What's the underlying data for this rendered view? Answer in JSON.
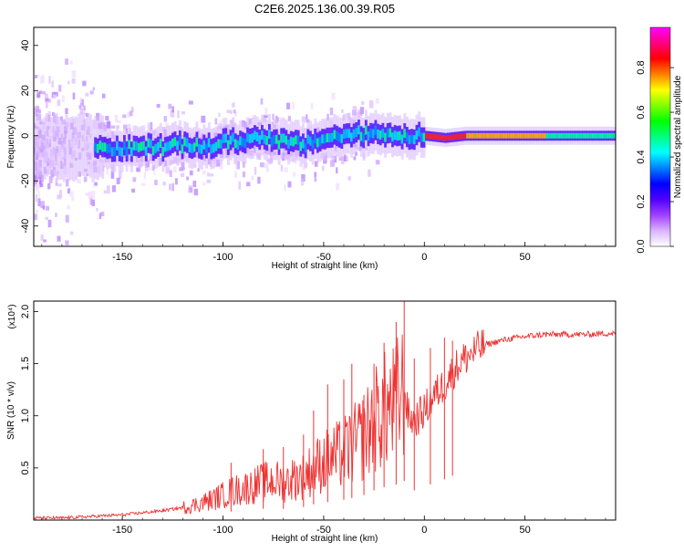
{
  "title": "C2E6.2025.136.00.39.R05",
  "colorbar": {
    "label": "Normalized spectral amplitude",
    "ticks": [
      "0.0",
      "0.2",
      "0.4",
      "0.6",
      "0.8"
    ],
    "tick_values": [
      0.0,
      0.2,
      0.4,
      0.6,
      0.8
    ],
    "range": [
      0.0,
      0.98
    ],
    "colors": [
      "#ffffff",
      "#d9b3ff",
      "#a040ff",
      "#5000ff",
      "#0000ff",
      "#0080ff",
      "#00ffff",
      "#00ff80",
      "#00ff00",
      "#80ff00",
      "#ffff00",
      "#ff8000",
      "#ff0000",
      "#ff0080",
      "#ff00ff"
    ]
  },
  "chart_data": [
    {
      "type": "heatmap",
      "xlabel": "Height of straight line (km)",
      "ylabel": "Frequency (Hz)",
      "xlim": [
        -194,
        95
      ],
      "ylim": [
        -49,
        48
      ],
      "x_ticks": [
        "-150",
        "-100",
        "-50",
        "0",
        "50"
      ],
      "x_tick_values": [
        -150,
        -100,
        -50,
        0,
        50
      ],
      "y_ticks": [
        "-40",
        "-20",
        "0",
        "20",
        "40"
      ],
      "y_tick_values": [
        -40,
        -20,
        0,
        20,
        40
      ],
      "ridge": {
        "x": [
          -160,
          -150,
          -140,
          -130,
          -120,
          -110,
          -100,
          -90,
          -80,
          -70,
          -60,
          -50,
          -40,
          -30,
          -20,
          -10,
          0,
          10,
          20,
          30,
          40,
          50,
          60,
          70,
          80,
          90
        ],
        "y": [
          -5,
          -6,
          -5,
          -5,
          -4,
          -5,
          -3,
          -2,
          0,
          -3,
          -4,
          -1,
          0,
          1,
          1,
          0,
          0,
          -1,
          0,
          0,
          0,
          0,
          0,
          0,
          0,
          0
        ]
      }
    },
    {
      "type": "line",
      "xlabel": "Height of straight line (km)",
      "ylabel": "SNR (10 * v/v)",
      "y_multiplier": "(x10⁴)",
      "xlim": [
        -194,
        95
      ],
      "ylim": [
        0,
        2.1
      ],
      "x_ticks": [
        "-150",
        "-100",
        "-50",
        "0",
        "50"
      ],
      "x_tick_values": [
        -150,
        -100,
        -50,
        0,
        50
      ],
      "y_ticks": [
        "0.5",
        "1.0",
        "1.5",
        "2.0"
      ],
      "y_tick_values": [
        0.5,
        1.0,
        1.5,
        2.0
      ],
      "color": "#ee3333",
      "series": [
        {
          "x": [
            -194,
            -180,
            -170,
            -160,
            -150,
            -140,
            -130,
            -120,
            -115,
            -110,
            -105,
            -100,
            -95,
            -90,
            -85,
            -80,
            -75,
            -70,
            -65,
            -60,
            -55,
            -50,
            -45,
            -40,
            -35,
            -30,
            -25,
            -20,
            -15,
            -12,
            -10,
            -8,
            -5,
            0,
            5,
            10,
            15,
            20,
            25,
            30,
            40,
            50,
            60,
            70,
            80,
            90,
            95
          ],
          "y": [
            0.02,
            0.02,
            0.03,
            0.04,
            0.05,
            0.07,
            0.09,
            0.12,
            0.14,
            0.17,
            0.2,
            0.24,
            0.28,
            0.3,
            0.33,
            0.36,
            0.38,
            0.36,
            0.4,
            0.42,
            0.5,
            0.56,
            0.6,
            0.65,
            0.72,
            0.8,
            0.95,
            1.05,
            1.1,
            1.2,
            1.25,
            1.0,
            0.95,
            1.05,
            1.2,
            1.3,
            1.45,
            1.55,
            1.62,
            1.68,
            1.73,
            1.76,
            1.78,
            1.78,
            1.78,
            1.79,
            1.79
          ]
        }
      ],
      "spikes": [
        {
          "x": -96,
          "y": 0.55
        },
        {
          "x": -80,
          "y": 0.68
        },
        {
          "x": -70,
          "y": 0.7
        },
        {
          "x": -60,
          "y": 0.82
        },
        {
          "x": -55,
          "y": 1.05
        },
        {
          "x": -48,
          "y": 1.3
        },
        {
          "x": -40,
          "y": 1.35
        },
        {
          "x": -36,
          "y": 1.5
        },
        {
          "x": -30,
          "y": 1.2
        },
        {
          "x": -25,
          "y": 1.5
        },
        {
          "x": -20,
          "y": 1.7
        },
        {
          "x": -14,
          "y": 1.9
        },
        {
          "x": -10,
          "y": 2.1
        },
        {
          "x": -5,
          "y": 1.55
        },
        {
          "x": 3,
          "y": 1.65
        },
        {
          "x": 10,
          "y": 1.75
        },
        {
          "x": 14,
          "y": 1.72
        }
      ]
    }
  ]
}
